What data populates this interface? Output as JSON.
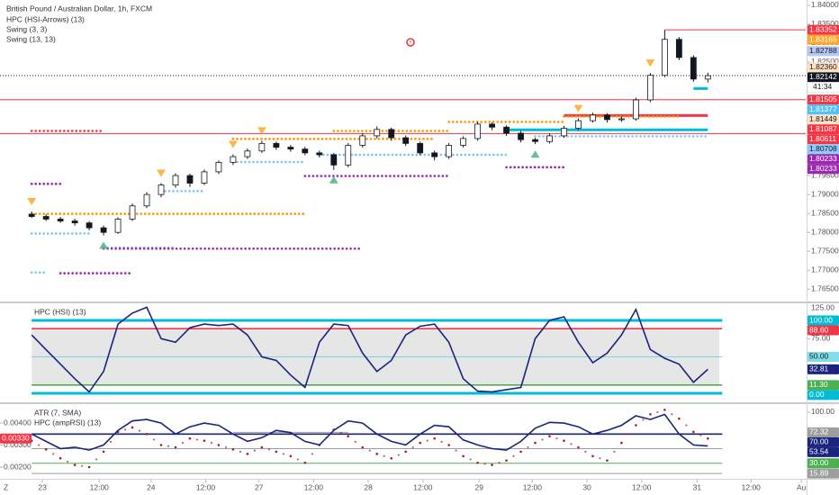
{
  "corner_label": "Z",
  "chart_data": [
    {
      "type": "candlestick",
      "title": "British Pound / Australian Dollar, 1h, FXCM",
      "legend": [
        "HPC (HSI-Arrows) (13)",
        "Swing (3, 3)",
        "Swing (13, 13)"
      ],
      "open": [
        1.7848,
        1.7842,
        1.7835,
        1.783,
        1.7825,
        1.7812,
        1.78,
        1.7835,
        1.787,
        1.79,
        1.7925,
        1.795,
        1.793,
        1.796,
        1.7985,
        1.8,
        1.8015,
        1.8035,
        1.8025,
        1.802,
        1.801,
        1.8005,
        1.7978,
        1.803,
        1.8055,
        1.8072,
        1.805,
        1.8035,
        1.801,
        1.8,
        1.803,
        1.8048,
        1.8086,
        1.8078,
        1.8062,
        1.8045,
        1.804,
        1.8055,
        1.8075,
        1.8095,
        1.811,
        1.8098,
        1.81,
        1.815,
        1.8215,
        1.831,
        1.8262,
        1.8205
      ],
      "high": [
        1.7855,
        1.7848,
        1.7841,
        1.7836,
        1.783,
        1.7818,
        1.784,
        1.7876,
        1.7906,
        1.793,
        1.7956,
        1.7955,
        1.7966,
        1.799,
        1.8006,
        1.8022,
        1.8042,
        1.804,
        1.8031,
        1.8026,
        1.8016,
        1.801,
        1.8036,
        1.8062,
        1.808,
        1.8077,
        1.8056,
        1.804,
        1.8016,
        1.8036,
        1.8054,
        1.8092,
        1.8091,
        1.8083,
        1.8068,
        1.805,
        1.8061,
        1.8081,
        1.8101,
        1.8116,
        1.8115,
        1.8106,
        1.8156,
        1.8221,
        1.8335,
        1.8316,
        1.8268,
        1.8222
      ],
      "low": [
        1.7838,
        1.783,
        1.7825,
        1.7818,
        1.7805,
        1.7792,
        1.7796,
        1.783,
        1.7864,
        1.7893,
        1.7918,
        1.792,
        1.7925,
        1.7954,
        1.7978,
        1.7994,
        1.801,
        1.8018,
        1.8013,
        1.8004,
        1.7998,
        1.7965,
        1.7972,
        1.8024,
        1.8048,
        1.8042,
        1.8028,
        1.8004,
        1.799,
        1.7994,
        1.8024,
        1.8042,
        1.807,
        1.8055,
        1.8038,
        1.8033,
        1.8035,
        1.805,
        1.807,
        1.809,
        1.809,
        1.8092,
        1.8095,
        1.8144,
        1.821,
        1.8255,
        1.8198,
        1.8196
      ],
      "close": [
        1.7842,
        1.7835,
        1.783,
        1.7825,
        1.7812,
        1.78,
        1.7835,
        1.787,
        1.79,
        1.7925,
        1.795,
        1.793,
        1.796,
        1.7985,
        1.8,
        1.8015,
        1.8035,
        1.8025,
        1.802,
        1.801,
        1.8005,
        1.7978,
        1.803,
        1.8055,
        1.8072,
        1.805,
        1.8035,
        1.801,
        1.8,
        1.803,
        1.8048,
        1.8086,
        1.8078,
        1.8062,
        1.8045,
        1.804,
        1.8055,
        1.8075,
        1.8095,
        1.811,
        1.8098,
        1.81,
        1.815,
        1.8215,
        1.831,
        1.8262,
        1.8205,
        1.8214
      ],
      "up_color": "#ffffff",
      "down_color": "#131722",
      "sell_signals": [
        0,
        9,
        14,
        16,
        38,
        43
      ],
      "sell_color": "#ffa726",
      "buy_signals": [
        5,
        21,
        35
      ],
      "buy_color": "#4db38a",
      "xlim": [
        -2.2,
        53.8
      ],
      "ylim": [
        1.76173,
        1.8414
      ],
      "yticks": [
        {
          "value": 1.84,
          "label": "1.84000"
        },
        {
          "value": 1.835,
          "label": "1.83500"
        },
        {
          "value": 1.83,
          "label": "1.83000"
        },
        {
          "value": 1.825,
          "label": "1.82500"
        },
        {
          "value": 1.82,
          "label": "1.82000"
        },
        {
          "value": 1.815,
          "label": "1.81500"
        },
        {
          "value": 1.81,
          "label": "1.81000"
        },
        {
          "value": 1.805,
          "label": "1.80500"
        },
        {
          "value": 1.8,
          "label": "1.80000"
        },
        {
          "value": 1.795,
          "label": "1.79500"
        },
        {
          "value": 1.79,
          "label": "1.79000"
        },
        {
          "value": 1.785,
          "label": "1.78500"
        },
        {
          "value": 1.78,
          "label": "1.78000"
        },
        {
          "value": 1.775,
          "label": "1.77500"
        },
        {
          "value": 1.77,
          "label": "1.77000"
        },
        {
          "value": 1.765,
          "label": "1.76500"
        }
      ],
      "levels": [
        {
          "value": 1.83352,
          "color": "#f23645",
          "style": "solid",
          "from": 44
        },
        {
          "value": 1.82142,
          "color": "#131722",
          "style": "dashed"
        },
        {
          "value": 1.81505,
          "color": "#f23645",
          "style": "solid"
        },
        {
          "value": 1.80611,
          "color": "#f23645",
          "style": "solid"
        },
        {
          "value": 1.81087,
          "color": "#f23645",
          "style": "thick",
          "from": 37,
          "to": 47
        },
        {
          "value": 1.80708,
          "color": "#00bcd4",
          "style": "thick",
          "from": 33,
          "to": 47
        },
        {
          "value": 1.818,
          "color": "#00bcd4",
          "style": "thick",
          "from": 46,
          "to": 47
        },
        {
          "value": 1.8068,
          "color": "#f23645",
          "style": "dotted",
          "from": 0,
          "to": 5
        },
        {
          "value": 1.7928,
          "color": "#9c27b0",
          "style": "dotted",
          "from": 0,
          "to": 2
        },
        {
          "value": 1.7849,
          "color": "#ff9800",
          "style": "dotted",
          "from": 0,
          "to": 19
        },
        {
          "value": 1.7797,
          "color": "#7fc8f0",
          "style": "dotted",
          "from": 0,
          "to": 4
        },
        {
          "value": 1.776,
          "color": "#7fc8f0",
          "style": "dotted",
          "from": 5,
          "to": 10
        },
        {
          "value": 1.7757,
          "color": "#9c27b0",
          "style": "dotted",
          "from": 5,
          "to": 23
        },
        {
          "value": 1.7694,
          "color": "#7fc8f0",
          "style": "dotted",
          "from": 0,
          "to": 1
        },
        {
          "value": 1.7692,
          "color": "#9c27b0",
          "style": "dotted",
          "from": 2,
          "to": 7
        },
        {
          "value": 1.7909,
          "color": "#7fc8f0",
          "style": "dotted",
          "from": 9,
          "to": 12
        },
        {
          "value": 1.8047,
          "color": "#ff9800",
          "style": "dotted",
          "from": 14,
          "to": 28
        },
        {
          "value": 1.7986,
          "color": "#7fc8f0",
          "style": "dotted",
          "from": 14,
          "to": 19
        },
        {
          "value": 1.7949,
          "color": "#9c27b0",
          "style": "dotted",
          "from": 19,
          "to": 29
        },
        {
          "value": 1.8068,
          "color": "#ff9800",
          "style": "dotted",
          "from": 21,
          "to": 29
        },
        {
          "value": 1.8005,
          "color": "#7fc8f0",
          "style": "dotted",
          "from": 20,
          "to": 33
        },
        {
          "value": 1.8092,
          "color": "#ff9800",
          "style": "dotted",
          "from": 29,
          "to": 37
        },
        {
          "value": 1.8054,
          "color": "#7fc8f0",
          "style": "dotted",
          "from": 35,
          "to": 47
        },
        {
          "value": 1.7972,
          "color": "#9c27b0",
          "style": "dotted",
          "from": 33,
          "to": 37
        },
        {
          "value": 1.8106,
          "color": "#ff9800",
          "style": "dotted",
          "from": 37,
          "to": 45
        }
      ],
      "tags": [
        {
          "value": 1.83352,
          "label": "1.83352",
          "color": "#f23645",
          "text_color": "#ffffff"
        },
        {
          "value": 1.83165,
          "label": "1.83165",
          "color": "#ffa726",
          "text_color": "#ffffff"
        },
        {
          "value": 1.82788,
          "label": "1.82788",
          "color": "#b6c8f2",
          "text_color": "#131722"
        },
        {
          "value": 1.8236,
          "label": "1.82360",
          "color": "#ffe0c2",
          "text_color": "#131722"
        },
        {
          "value": 1.82142,
          "label": "1.82142",
          "color": "#131722",
          "text_color": "#ffffff",
          "countdown": "41:34"
        },
        {
          "value": 1.81505,
          "label": "1.81505",
          "color": "#f23645",
          "text_color": "#ffffff"
        },
        {
          "value": 1.81377,
          "label": "1.81377",
          "color": "#4fc3f7",
          "text_color": "#ffffff"
        },
        {
          "value": 1.81449,
          "label": "1.81449",
          "color": "#ffe0c2",
          "text_color": "#131722"
        },
        {
          "value": 1.81087,
          "label": "1.81087",
          "color": "#f23645",
          "text_color": "#ffffff"
        },
        {
          "value": 1.80611,
          "label": "1.80611",
          "color": "#f23645",
          "text_color": "#ffffff"
        },
        {
          "value": 1.80708,
          "label": "1.80708",
          "color": "#90caf9",
          "text_color": "#131722"
        },
        {
          "value": 1.80233,
          "label": "1.80233",
          "color": "#9c27b0",
          "text_color": "#ffffff"
        },
        {
          "value": 1.80233,
          "label": "1.80233",
          "color": "#9c27b0",
          "text_color": "#ffffff"
        }
      ]
    },
    {
      "type": "line",
      "series": [
        {
          "name": "HPC (HSI) (13)",
          "color": "#1a237e",
          "values": [
            80,
            60,
            40,
            20,
            2,
            30,
            95,
            110,
            118,
            75,
            70,
            90,
            95,
            93,
            95,
            80,
            50,
            45,
            25,
            8,
            70,
            95,
            93,
            55,
            30,
            45,
            80,
            92,
            95,
            70,
            20,
            3,
            2,
            5,
            8,
            75,
            100,
            105,
            70,
            42,
            55,
            80,
            115,
            60,
            48,
            40,
            15,
            32.81
          ]
        }
      ],
      "xlim": [
        -2.2,
        53.8
      ],
      "ylim": [
        -12.35,
        123.46
      ],
      "yticks": [
        {
          "value": 125,
          "label": "125.00"
        },
        {
          "value": 75,
          "label": "75.00"
        }
      ],
      "band": {
        "from": 11.3,
        "to": 88.6,
        "color": "#e6e6e6"
      },
      "levels": [
        {
          "value": 100,
          "color": "#00bcd4",
          "style": "thick",
          "from": 0,
          "to": 48
        },
        {
          "value": 88.6,
          "color": "#f23645",
          "style": "medium",
          "from": 0,
          "to": 48
        },
        {
          "value": 50,
          "color": "#7fd0e6",
          "style": "solid",
          "from": 0,
          "to": 48
        },
        {
          "value": 11.3,
          "color": "#4caf50",
          "style": "medium",
          "from": 0,
          "to": 48
        },
        {
          "value": 0,
          "color": "#00bcd4",
          "style": "thick",
          "from": 0,
          "to": 48
        }
      ],
      "tags": [
        {
          "value": 100,
          "label": "100.00",
          "color": "#00bcd4",
          "text_color": "#ffffff"
        },
        {
          "value": 88.6,
          "label": "88.60",
          "color": "#f23645",
          "text_color": "#ffffff"
        },
        {
          "value": 50,
          "label": "50.00",
          "color": "#80deea",
          "text_color": "#131722"
        },
        {
          "value": 32.81,
          "label": "32.81",
          "color": "#1a237e",
          "text_color": "#ffffff"
        },
        {
          "value": 11.3,
          "label": "11.30",
          "color": "#4caf50",
          "text_color": "#ffffff"
        },
        {
          "value": 0,
          "label": "0.00",
          "color": "#00bcd4",
          "text_color": "#ffffff"
        }
      ]
    },
    {
      "type": "line",
      "yaxis": "left",
      "series": [
        {
          "name": "ATR (7, SMA)",
          "color": "#a3202a",
          "style": "dots",
          "values": [
            0.0032,
            0.0028,
            0.0024,
            0.0021,
            0.002,
            0.0027,
            0.0036,
            0.0038,
            0.0035,
            0.003,
            0.0029,
            0.0033,
            0.0032,
            0.003,
            0.0028,
            0.0026,
            0.0029,
            0.0027,
            0.0025,
            0.0022,
            0.003,
            0.0037,
            0.0034,
            0.0029,
            0.0026,
            0.0024,
            0.0027,
            0.0031,
            0.0033,
            0.003,
            0.0025,
            0.0022,
            0.0021,
            0.0023,
            0.0027,
            0.0031,
            0.0034,
            0.0032,
            0.0029,
            0.0025,
            0.0023,
            0.0031,
            0.0039,
            0.0044,
            0.0046,
            0.0042,
            0.0036,
            0.0033
          ]
        },
        {
          "name": "HPC (ampRSI) (13)",
          "color": "#1a237e",
          "axis": "y2",
          "values": [
            70,
            60,
            50,
            52,
            48,
            55,
            75,
            88,
            90,
            85,
            70,
            80,
            85,
            82,
            70,
            60,
            65,
            75,
            72,
            60,
            55,
            75,
            88,
            85,
            70,
            60,
            55,
            70,
            82,
            80,
            62,
            55,
            50,
            48,
            60,
            78,
            86,
            85,
            80,
            70,
            75,
            82,
            95,
            90,
            97,
            70,
            55,
            53.54
          ]
        }
      ],
      "xlim": [
        -2.2,
        53.8
      ],
      "ylim": [
        0.00147,
        0.00486
      ],
      "yticks": [
        {
          "value": 0.004,
          "label": "0.00400"
        },
        {
          "value": 0.003,
          "label": "0.00300"
        },
        {
          "value": 0.002,
          "label": "0.00200"
        }
      ],
      "y2lim": [
        8.64,
        111.1
      ],
      "y2ticks": [
        {
          "value": 100,
          "label": "100.00"
        },
        {
          "value": 50,
          "label": "50.00"
        }
      ],
      "xticks": [
        {
          "value": 0.75,
          "label": "23"
        },
        {
          "value": 4.7,
          "label": "12:00"
        },
        {
          "value": 8.3,
          "label": "24"
        },
        {
          "value": 12.1,
          "label": "12:00"
        },
        {
          "value": 15.8,
          "label": "27"
        },
        {
          "value": 19.6,
          "label": "12:00"
        },
        {
          "value": 23.4,
          "label": "28"
        },
        {
          "value": 27.2,
          "label": "12:00"
        },
        {
          "value": 31.1,
          "label": "29"
        },
        {
          "value": 34.8,
          "label": "12:00"
        },
        {
          "value": 38.6,
          "label": "30"
        },
        {
          "value": 42.4,
          "label": "12:00"
        },
        {
          "value": 46.25,
          "label": "31"
        },
        {
          "value": 50,
          "label": "12:00"
        },
        {
          "value": 53.5,
          "label": "Au"
        }
      ],
      "levels": [
        {
          "value": 72.32,
          "color": "#9e9e9e",
          "style": "solid",
          "axis": "y2",
          "from": 14,
          "to": 22
        },
        {
          "value": 70,
          "color": "#1a237e",
          "style": "medium",
          "axis": "y2",
          "from": 0,
          "to": 48
        },
        {
          "value": 50,
          "color": "#9e9e9e",
          "style": "solid",
          "axis": "y2",
          "from": 0,
          "to": 48
        },
        {
          "value": 30,
          "color": "#4caf50",
          "style": "solid",
          "axis": "y2",
          "from": 0,
          "to": 48
        },
        {
          "value": 15.89,
          "color": "#9e9e9e",
          "style": "solid",
          "axis": "y2",
          "from": 0,
          "to": 48
        }
      ],
      "tags": [
        {
          "value": 0.0033,
          "label": "0.00330",
          "color": "#f23645",
          "text_color": "#ffffff"
        },
        {
          "value": 72.32,
          "label": "72.32",
          "color": "#9e9e9e",
          "text_color": "#ffffff",
          "axis": "y2"
        },
        {
          "value": 70,
          "label": "70.00",
          "color": "#1a237e",
          "text_color": "#ffffff",
          "axis": "y2"
        },
        {
          "value": 53.54,
          "label": "53.54",
          "color": "#1a237e",
          "text_color": "#ffffff",
          "axis": "y2"
        },
        {
          "value": 30,
          "label": "30.00",
          "color": "#4caf50",
          "text_color": "#ffffff",
          "axis": "y2"
        },
        {
          "value": 15.89,
          "label": "15.89",
          "color": "#9e9e9e",
          "text_color": "#ffffff",
          "axis": "y2"
        }
      ]
    }
  ]
}
